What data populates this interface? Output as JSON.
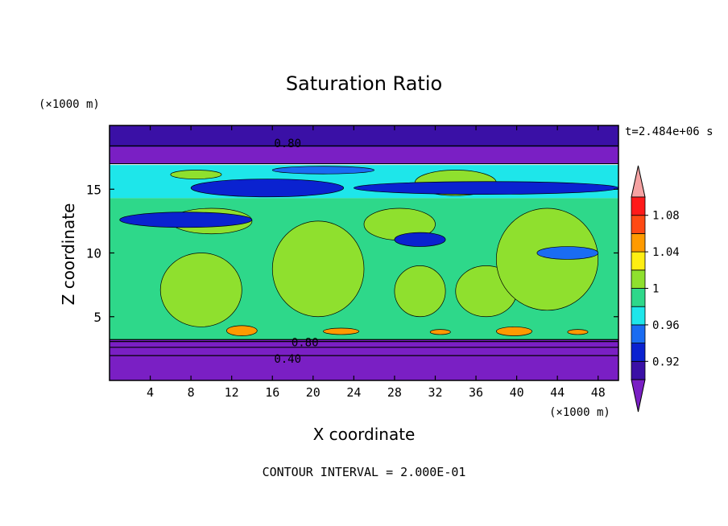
{
  "chart_data": {
    "type": "heatmap",
    "title": "Saturation Ratio",
    "xlabel": "X coordinate",
    "ylabel": "Z coordinate",
    "x_units": "(×1000 m)",
    "y_units": "(×1000 m)",
    "time_label": "t=2.484e+06 s",
    "footer": "CONTOUR INTERVAL = 2.000E-01",
    "xlim": [
      0,
      50
    ],
    "ylim": [
      0,
      20
    ],
    "x_ticks": [
      4,
      8,
      12,
      16,
      20,
      24,
      28,
      32,
      36,
      40,
      44,
      48
    ],
    "y_ticks": [
      5,
      10,
      15
    ],
    "contour_labels": [
      {
        "text": "0.80",
        "x": 17.5,
        "z": 18.6
      },
      {
        "text": "0.80",
        "x": 19.2,
        "z": 3.0
      },
      {
        "text": "0.40",
        "x": 17.5,
        "z": 1.7
      }
    ],
    "colorbar": {
      "levels": [
        0.9,
        0.92,
        0.94,
        0.96,
        0.98,
        1.0,
        1.02,
        1.04,
        1.06,
        1.08,
        1.1
      ],
      "labels": [
        "0.92",
        "0.96",
        "1",
        "1.04",
        "1.08"
      ],
      "colors": [
        "#7a1fc4",
        "#3a10a6",
        "#0a22d0",
        "#1a6cf2",
        "#1ee6ea",
        "#2ed88a",
        "#8fe02e",
        "#ffee12",
        "#ff9a00",
        "#ff4a14",
        "#ff1a1a",
        "#f5a2a2"
      ]
    },
    "layers": [
      {
        "z": [
          18.3,
          20
        ],
        "value": 0.9
      },
      {
        "z": [
          17.0,
          18.3
        ],
        "value": 0.8
      },
      {
        "z": [
          14.3,
          16.9
        ],
        "value": 0.97
      },
      {
        "z": [
          3.2,
          14.3
        ],
        "value": 0.99
      },
      {
        "z": [
          0,
          3.2
        ],
        "value": 0.8
      }
    ],
    "regions": [
      {
        "value": 1.01,
        "x": [
          5,
          13
        ],
        "z": [
          4.2,
          10
        ]
      },
      {
        "value": 1.01,
        "x": [
          16,
          25
        ],
        "z": [
          5,
          12.5
        ]
      },
      {
        "value": 1.01,
        "x": [
          28,
          33
        ],
        "z": [
          5,
          9
        ]
      },
      {
        "value": 1.01,
        "x": [
          34,
          40
        ],
        "z": [
          5,
          9
        ]
      },
      {
        "value": 1.01,
        "x": [
          38,
          48
        ],
        "z": [
          5.5,
          13.5
        ]
      },
      {
        "value": 1.01,
        "x": [
          25,
          32
        ],
        "z": [
          11,
          13.5
        ]
      },
      {
        "value": 1.01,
        "x": [
          6,
          14
        ],
        "z": [
          11.5,
          13.5
        ]
      },
      {
        "value": 1.01,
        "x": [
          30,
          38
        ],
        "z": [
          14.5,
          16.5
        ]
      },
      {
        "value": 1.01,
        "x": [
          6,
          11
        ],
        "z": [
          15.8,
          16.5
        ]
      },
      {
        "value": 0.93,
        "x": [
          1,
          14
        ],
        "z": [
          12,
          13.2
        ]
      },
      {
        "value": 0.93,
        "x": [
          28,
          33
        ],
        "z": [
          10.5,
          11.6
        ]
      },
      {
        "value": 0.93,
        "x": [
          8,
          23
        ],
        "z": [
          14.4,
          15.8
        ]
      },
      {
        "value": 0.93,
        "x": [
          24,
          50
        ],
        "z": [
          14.6,
          15.6
        ]
      },
      {
        "value": 0.95,
        "x": [
          16,
          26
        ],
        "z": [
          16.2,
          16.8
        ]
      },
      {
        "value": 0.95,
        "x": [
          42,
          48
        ],
        "z": [
          9.5,
          10.5
        ]
      },
      {
        "value": 1.05,
        "x": [
          11.5,
          14.5
        ],
        "z": [
          3.5,
          4.3
        ]
      },
      {
        "value": 1.05,
        "x": [
          38,
          41.5
        ],
        "z": [
          3.5,
          4.2
        ]
      },
      {
        "value": 1.05,
        "x": [
          21,
          24.5
        ],
        "z": [
          3.6,
          4.1
        ]
      },
      {
        "value": 1.05,
        "x": [
          31.5,
          33.5
        ],
        "z": [
          3.6,
          4.0
        ]
      },
      {
        "value": 1.05,
        "x": [
          45,
          47
        ],
        "z": [
          3.6,
          4.0
        ]
      }
    ]
  }
}
